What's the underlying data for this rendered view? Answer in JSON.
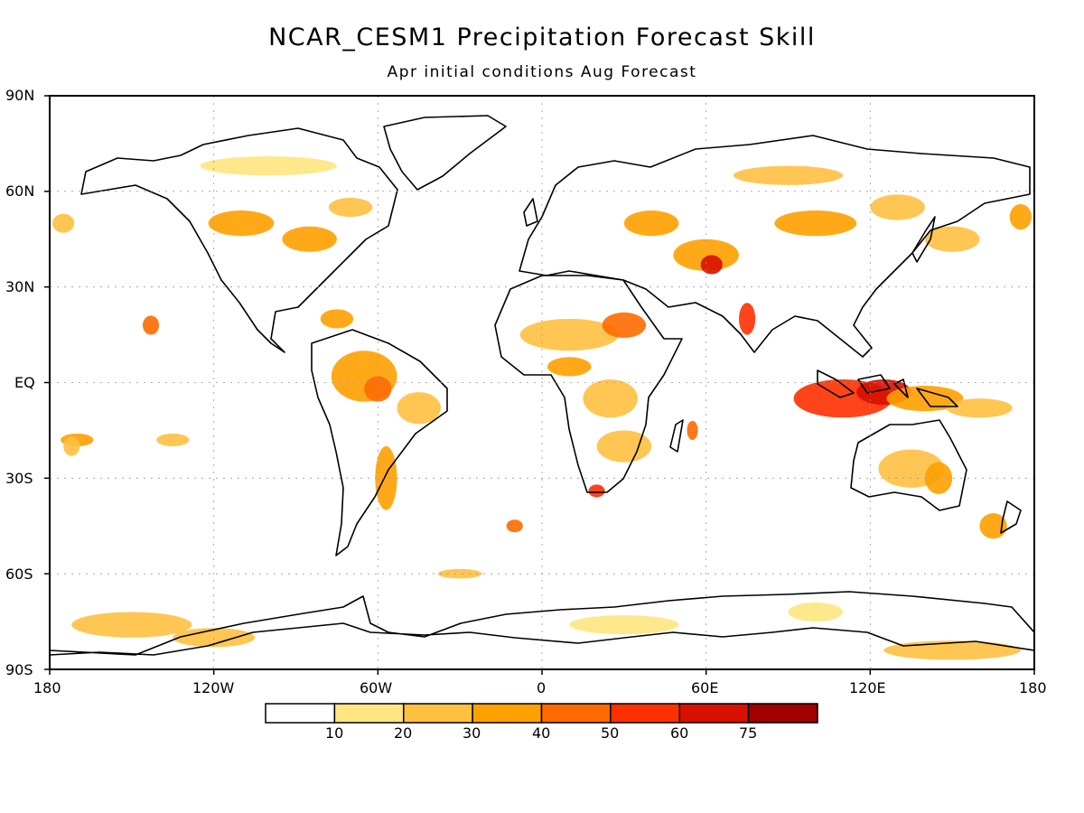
{
  "title": "NCAR_CESM1 Precipitation Forecast Skill",
  "subtitle": "Apr initial conditions   Aug Forecast",
  "lat_labels": [
    "90N",
    "60N",
    "30N",
    "EQ",
    "30S",
    "60S",
    "90S"
  ],
  "lon_labels": [
    "180",
    "120W",
    "60W",
    "0",
    "60E",
    "120E",
    "180"
  ],
  "legend": {
    "colors": [
      "#ffffff",
      "#ffe680",
      "#ffc040",
      "#ffa000",
      "#ff6a00",
      "#ff3000",
      "#d81000",
      "#a00000"
    ],
    "labels": [
      "10",
      "20",
      "30",
      "40",
      "50",
      "60",
      "75"
    ]
  },
  "skill_regions": [
    {
      "lon": 110,
      "lat": -5,
      "rx": 18,
      "ry": 6,
      "level": 5
    },
    {
      "lon": 125,
      "lat": -3,
      "rx": 10,
      "ry": 4,
      "level": 6
    },
    {
      "lon": 140,
      "lat": -5,
      "rx": 14,
      "ry": 4,
      "level": 3
    },
    {
      "lon": 160,
      "lat": -8,
      "rx": 12,
      "ry": 3,
      "level": 2
    },
    {
      "lon": -65,
      "lat": 2,
      "rx": 12,
      "ry": 8,
      "level": 3
    },
    {
      "lon": -60,
      "lat": -2,
      "rx": 5,
      "ry": 4,
      "level": 4
    },
    {
      "lon": -45,
      "lat": -8,
      "rx": 8,
      "ry": 5,
      "level": 2
    },
    {
      "lon": -57,
      "lat": -30,
      "rx": 4,
      "ry": 10,
      "level": 3
    },
    {
      "lon": 10,
      "lat": 15,
      "rx": 18,
      "ry": 5,
      "level": 2
    },
    {
      "lon": 30,
      "lat": 18,
      "rx": 8,
      "ry": 4,
      "level": 4
    },
    {
      "lon": 10,
      "lat": 5,
      "rx": 8,
      "ry": 3,
      "level": 3
    },
    {
      "lon": 25,
      "lat": -5,
      "rx": 10,
      "ry": 6,
      "level": 2
    },
    {
      "lon": 30,
      "lat": -20,
      "rx": 10,
      "ry": 5,
      "level": 2
    },
    {
      "lon": 20,
      "lat": -34,
      "rx": 3,
      "ry": 2,
      "level": 5
    },
    {
      "lon": -110,
      "lat": 50,
      "rx": 12,
      "ry": 4,
      "level": 3
    },
    {
      "lon": -85,
      "lat": 45,
      "rx": 10,
      "ry": 4,
      "level": 3
    },
    {
      "lon": -70,
      "lat": 55,
      "rx": 8,
      "ry": 3,
      "level": 2
    },
    {
      "lon": -75,
      "lat": 20,
      "rx": 6,
      "ry": 3,
      "level": 3
    },
    {
      "lon": 60,
      "lat": 40,
      "rx": 12,
      "ry": 5,
      "level": 3
    },
    {
      "lon": 62,
      "lat": 37,
      "rx": 4,
      "ry": 3,
      "level": 6
    },
    {
      "lon": 40,
      "lat": 50,
      "rx": 10,
      "ry": 4,
      "level": 3
    },
    {
      "lon": 100,
      "lat": 50,
      "rx": 15,
      "ry": 4,
      "level": 3
    },
    {
      "lon": 130,
      "lat": 55,
      "rx": 10,
      "ry": 4,
      "level": 2
    },
    {
      "lon": 150,
      "lat": 45,
      "rx": 10,
      "ry": 4,
      "level": 2
    },
    {
      "lon": 90,
      "lat": 65,
      "rx": 20,
      "ry": 3,
      "level": 2
    },
    {
      "lon": 75,
      "lat": 20,
      "rx": 3,
      "ry": 5,
      "level": 5
    },
    {
      "lon": -143,
      "lat": 18,
      "rx": 3,
      "ry": 3,
      "level": 4
    },
    {
      "lon": -170,
      "lat": -18,
      "rx": 6,
      "ry": 2,
      "level": 3
    },
    {
      "lon": -135,
      "lat": -18,
      "rx": 6,
      "ry": 2,
      "level": 2
    },
    {
      "lon": 55,
      "lat": -15,
      "rx": 2,
      "ry": 3,
      "level": 4
    },
    {
      "lon": 135,
      "lat": -27,
      "rx": 12,
      "ry": 6,
      "level": 2
    },
    {
      "lon": 145,
      "lat": -30,
      "rx": 5,
      "ry": 5,
      "level": 3
    },
    {
      "lon": 165,
      "lat": -45,
      "rx": 5,
      "ry": 4,
      "level": 3
    },
    {
      "lon": -10,
      "lat": -45,
      "rx": 3,
      "ry": 2,
      "level": 4
    },
    {
      "lon": -30,
      "lat": -60,
      "rx": 8,
      "ry": 1.5,
      "level": 2
    },
    {
      "lon": -150,
      "lat": -76,
      "rx": 22,
      "ry": 4,
      "level": 2
    },
    {
      "lon": -120,
      "lat": -80,
      "rx": 15,
      "ry": 3,
      "level": 2
    },
    {
      "lon": 30,
      "lat": -76,
      "rx": 20,
      "ry": 3,
      "level": 1
    },
    {
      "lon": 150,
      "lat": -84,
      "rx": 25,
      "ry": 3,
      "level": 2
    },
    {
      "lon": 100,
      "lat": -72,
      "rx": 10,
      "ry": 3,
      "level": 1
    },
    {
      "lon": -100,
      "lat": 68,
      "rx": 25,
      "ry": 3,
      "level": 1
    },
    {
      "lon": -175,
      "lat": 50,
      "rx": 4,
      "ry": 3,
      "level": 2
    },
    {
      "lon": 175,
      "lat": 52,
      "rx": 4,
      "ry": 4,
      "level": 3
    },
    {
      "lon": -172,
      "lat": -20,
      "rx": 3,
      "ry": 3,
      "level": 2
    }
  ]
}
